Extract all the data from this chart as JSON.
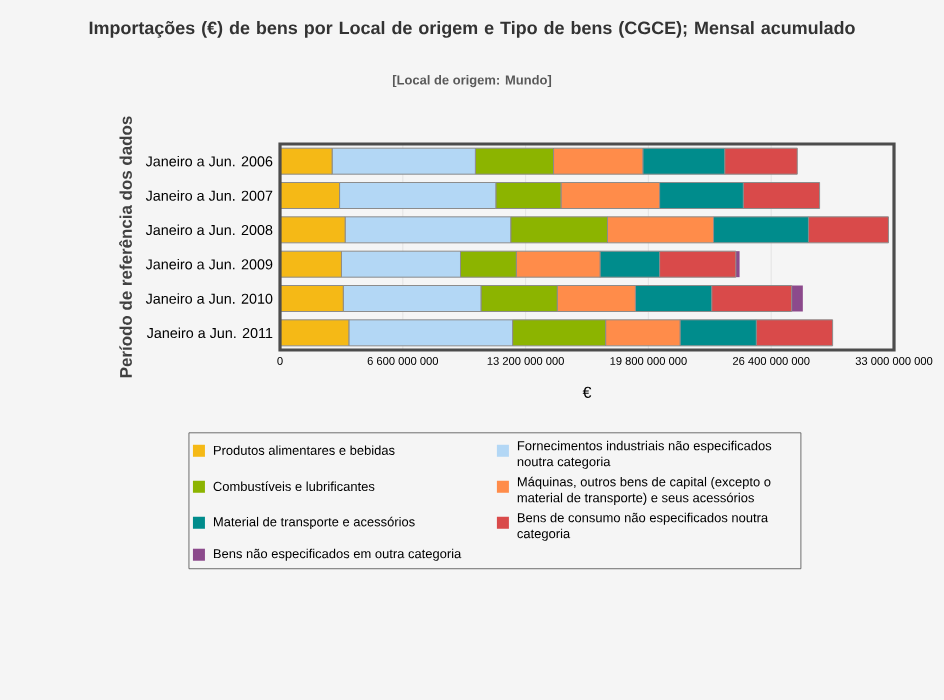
{
  "chart_data": {
    "type": "bar",
    "orientation": "horizontal",
    "stacked": true,
    "title": "Importações (€) de bens por Local de origem e Tipo de bens (CGCE); Mensal acumulado",
    "subtitle": "[Local de origem: Mundo]",
    "xlabel": "€",
    "ylabel": "Período de referência dos dados",
    "categories": [
      "Janeiro a Jun. 2006",
      "Janeiro a Jun. 2007",
      "Janeiro a Jun. 2008",
      "Janeiro a Jun. 2009",
      "Janeiro a Jun. 2010",
      "Janeiro a Jun. 2011"
    ],
    "series": [
      {
        "name": "Produtos alimentares e bebidas",
        "color": "#f5b916",
        "values": [
          2800000000,
          3200000000,
          3500000000,
          3300000000,
          3400000000,
          3700000000
        ]
      },
      {
        "name": "Fornecimentos industriais não especificados noutra categoria",
        "color": "#b3d7f5",
        "values": [
          7700000000,
          8400000000,
          8900000000,
          6400000000,
          7400000000,
          8800000000
        ]
      },
      {
        "name": "Combustíveis e lubrificantes",
        "color": "#8cb400",
        "values": [
          4200000000,
          3500000000,
          5200000000,
          3000000000,
          4100000000,
          5000000000
        ]
      },
      {
        "name": "Máquinas, outros bens de capital (excepto o material de transporte) e seus acessórios",
        "color": "#ff8c4a",
        "values": [
          4800000000,
          5300000000,
          5700000000,
          4500000000,
          4200000000,
          4000000000
        ]
      },
      {
        "name": "Material de transporte e acessórios",
        "color": "#008c8c",
        "values": [
          4400000000,
          4500000000,
          5100000000,
          3200000000,
          4100000000,
          4100000000
        ]
      },
      {
        "name": "Bens de consumo não especificados noutra categoria",
        "color": "#d94a4a",
        "values": [
          3900000000,
          4100000000,
          4300000000,
          4100000000,
          4300000000,
          4100000000
        ]
      },
      {
        "name": "Bens não especificados em outra categoria",
        "color": "#8c4a8c",
        "values": [
          null,
          null,
          null,
          200000000,
          600000000,
          null
        ]
      }
    ],
    "xlim": [
      0,
      33000000000
    ],
    "xticks": [
      0,
      {
        "value": 6600000000,
        "label": "6 600 000 000"
      },
      {
        "value": 13200000000,
        "label": "13 200 000 000"
      },
      {
        "value": 19800000000,
        "label": "19 800 000 000"
      },
      {
        "value": 26400000000,
        "label": "26 400 000 000"
      },
      {
        "value": 33000000000,
        "label": "33 000 000 000"
      }
    ],
    "grid": "x",
    "legend": "bottom"
  }
}
